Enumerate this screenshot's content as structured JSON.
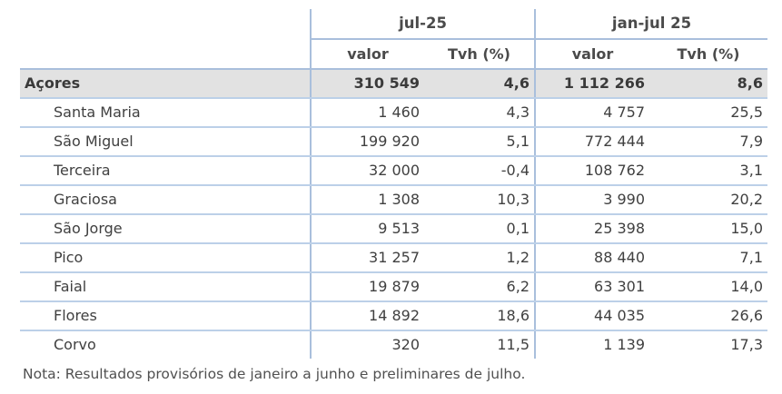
{
  "table": {
    "periods": [
      "jul-25",
      "jan-jul 25"
    ],
    "subheaders": [
      "valor",
      "Tvh (%)",
      "valor",
      "Tvh (%)"
    ],
    "rows": [
      {
        "name": "Açores",
        "v1": "310 549",
        "t1": "4,6",
        "v2": "1 112 266",
        "t2": "8,6"
      },
      {
        "name": "Santa Maria",
        "v1": "1 460",
        "t1": "4,3",
        "v2": "4 757",
        "t2": "25,5"
      },
      {
        "name": "São Miguel",
        "v1": "199 920",
        "t1": "5,1",
        "v2": "772 444",
        "t2": "7,9"
      },
      {
        "name": "Terceira",
        "v1": "32 000",
        "t1": "-0,4",
        "v2": "108 762",
        "t2": "3,1"
      },
      {
        "name": "Graciosa",
        "v1": "1 308",
        "t1": "10,3",
        "v2": "3 990",
        "t2": "20,2"
      },
      {
        "name": "São Jorge",
        "v1": "9 513",
        "t1": "0,1",
        "v2": "25 398",
        "t2": "15,0"
      },
      {
        "name": "Pico",
        "v1": "31 257",
        "t1": "1,2",
        "v2": "88 440",
        "t2": "7,1"
      },
      {
        "name": "Faial",
        "v1": "19 879",
        "t1": "6,2",
        "v2": "63 301",
        "t2": "14,0"
      },
      {
        "name": "Flores",
        "v1": "14 892",
        "t1": "18,6",
        "v2": "44 035",
        "t2": "26,6"
      },
      {
        "name": "Corvo",
        "v1": "320",
        "t1": "11,5",
        "v2": "1 139",
        "t2": "17,3"
      }
    ]
  },
  "note": "Nota: Resultados provisórios de janeiro a junho e preliminares de julho."
}
